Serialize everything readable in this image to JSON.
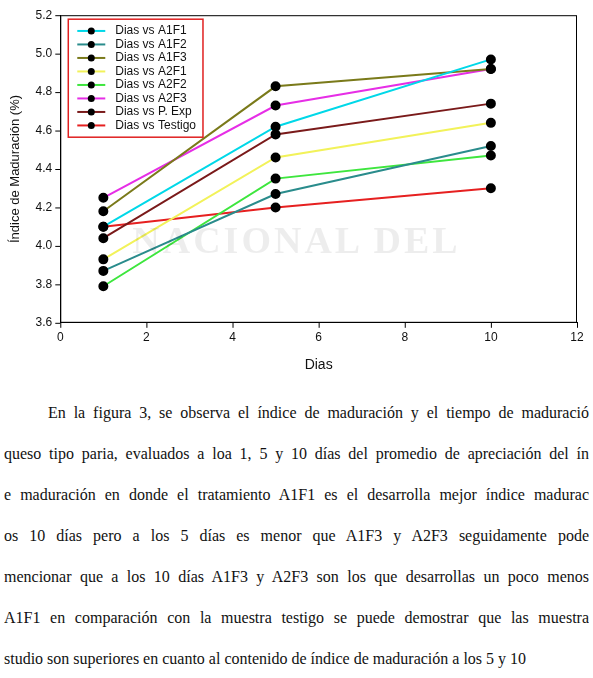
{
  "chart_data": {
    "type": "line",
    "x_label": "Dias",
    "y_label": "Índice de Maduración (%)",
    "x": [
      1,
      5,
      10
    ],
    "series": [
      {
        "name": "Dias vs A1F1",
        "color": "#00d8e8",
        "values": [
          4.1,
          4.62,
          4.97
        ]
      },
      {
        "name": "Dias vs A1F2",
        "color": "#2a8c8c",
        "values": [
          3.87,
          4.27,
          4.52
        ]
      },
      {
        "name": "Dias vs A1F3",
        "color": "#7a7a1a",
        "values": [
          4.18,
          4.83,
          4.92
        ]
      },
      {
        "name": "Dias vs A2F1",
        "color": "#f2f25a",
        "values": [
          3.93,
          4.46,
          4.64
        ]
      },
      {
        "name": "Dias vs A2F2",
        "color": "#3ee63e",
        "values": [
          3.79,
          4.35,
          4.47
        ]
      },
      {
        "name": "Dias vs A2F3",
        "color": "#e62ee6",
        "values": [
          4.25,
          4.73,
          4.92
        ]
      },
      {
        "name": "Dias vs P. Exp",
        "color": "#7a1a1a",
        "values": [
          4.04,
          4.58,
          4.74
        ]
      },
      {
        "name": "Dias vs Testigo",
        "color": "#e62020",
        "values": [
          4.1,
          4.2,
          4.3
        ]
      }
    ],
    "xlim": [
      0,
      12
    ],
    "xticks": [
      0,
      2,
      4,
      6,
      8,
      10,
      12
    ],
    "ylim": [
      3.6,
      5.2
    ],
    "yticks": [
      3.6,
      3.8,
      {
        "value": 4,
        "label": "4.0"
      },
      4.2,
      4.4,
      4.6,
      4.8,
      {
        "value": 5,
        "label": "5.0"
      },
      5.2
    ],
    "grid": false,
    "legend": "upper left",
    "marker": "circle"
  },
  "watermark": "NACIONAL DEL",
  "paragraph_lines": [
    "En la figura 3, se observa el índice de maduración y el tiempo de maduració",
    "queso tipo paria, evaluados a loa 1, 5 y 10 días del promedio de apreciación del ín",
    "e maduración en donde el tratamiento A1F1 es el desarrolla mejor índice madurac",
    "os 10 días pero a los 5 días es menor que A1F3 y A2F3 seguidamente pode",
    "mencionar que a los 10 días A1F3 y A2F3 son los que desarrollas un poco menos",
    "A1F1 en comparación con la muestra testigo se puede demostrar que las muestra",
    "studio son superiores en cuanto al contenido de índice de maduración a los 5 y 10"
  ]
}
